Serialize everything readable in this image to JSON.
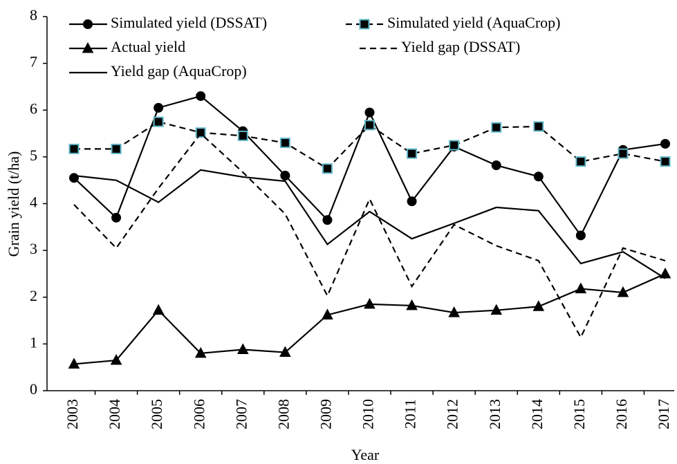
{
  "chart_data": {
    "type": "line",
    "x_label": "Year",
    "y_label": "Grain yield (t/ha)",
    "categories": [
      "2003",
      "2004",
      "2005",
      "2006",
      "2007",
      "2008",
      "2009",
      "2010",
      "2011",
      "2012",
      "2013",
      "2014",
      "2015",
      "2016",
      "2017"
    ],
    "ylim": [
      0,
      8
    ],
    "yticks": [
      0,
      1,
      2,
      3,
      4,
      5,
      6,
      7,
      8
    ],
    "legend": "top",
    "series": [
      {
        "name": "Simulated yield (DSSAT)",
        "color": "#000000",
        "marker": "circle",
        "dash": false,
        "values": [
          4.55,
          3.7,
          6.05,
          6.3,
          5.55,
          4.6,
          3.65,
          5.95,
          4.05,
          5.22,
          4.82,
          4.58,
          3.32,
          5.15,
          5.28
        ]
      },
      {
        "name": "Simulated yield (AquaCrop)",
        "color": "#000000",
        "marker": "square",
        "dash": true,
        "values": [
          5.17,
          5.17,
          5.75,
          5.52,
          5.45,
          5.3,
          4.75,
          5.68,
          5.07,
          5.25,
          5.63,
          5.65,
          4.9,
          5.07,
          4.9
        ]
      },
      {
        "name": "Actual yield",
        "color": "#000000",
        "marker": "triangle",
        "dash": false,
        "values": [
          0.57,
          0.65,
          1.72,
          0.8,
          0.88,
          0.82,
          1.62,
          1.85,
          1.82,
          1.67,
          1.72,
          1.8,
          2.18,
          2.1,
          2.5
        ]
      },
      {
        "name": "Yield gap (DSSAT)",
        "color": "#000000",
        "marker": "none",
        "dash": true,
        "values": [
          3.98,
          3.05,
          4.33,
          5.5,
          4.67,
          3.78,
          2.03,
          4.1,
          2.23,
          3.55,
          3.1,
          2.78,
          1.14,
          3.05,
          2.78
        ]
      },
      {
        "name": "Yield gap (AquaCrop)",
        "color": "#000000",
        "marker": "none",
        "dash": false,
        "values": [
          4.6,
          4.5,
          4.03,
          4.72,
          4.57,
          4.48,
          3.13,
          3.83,
          3.25,
          3.58,
          3.92,
          3.85,
          2.72,
          2.97,
          2.4
        ]
      }
    ]
  }
}
